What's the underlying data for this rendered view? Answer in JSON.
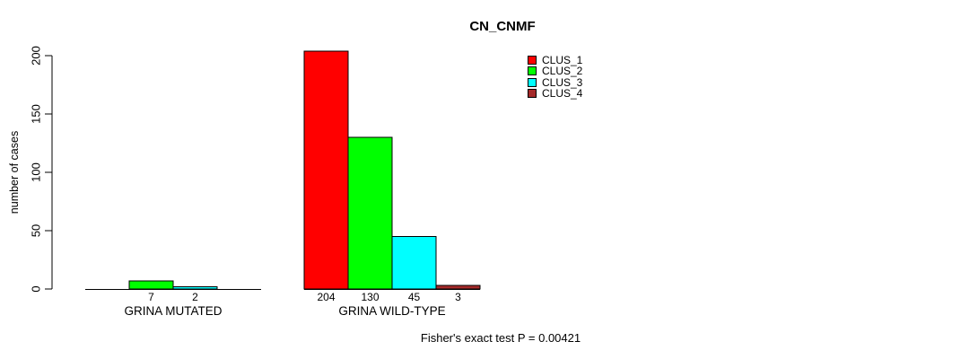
{
  "chart_data": {
    "type": "bar",
    "title": "CN_CNMF",
    "ylabel": "number of cases",
    "xlabel": "",
    "ylim": [
      0,
      200
    ],
    "yticks": [
      0,
      50,
      100,
      150,
      200
    ],
    "categories": [
      "GRINA MUTATED",
      "GRINA WILD-TYPE"
    ],
    "series": [
      {
        "name": "CLUS_1",
        "color": "#FF0000",
        "values": [
          0,
          204
        ]
      },
      {
        "name": "CLUS_2",
        "color": "#00FF00",
        "values": [
          7,
          130
        ]
      },
      {
        "name": "CLUS_3",
        "color": "#00FFFF",
        "values": [
          2,
          45
        ]
      },
      {
        "name": "CLUS_4",
        "color": "#A52A2A",
        "values": [
          0,
          3
        ]
      }
    ],
    "bar_value_labels_shown": [
      "7",
      "2",
      "204",
      "130",
      "45",
      "3"
    ],
    "hide_zero_value_labels": true,
    "legend_position": "top-right",
    "legend_entries": [
      "CLUS_1",
      "CLUS_2",
      "CLUS_3",
      "CLUS_4"
    ],
    "grid": false,
    "annotation": "Fisher's exact test P = 0.00421"
  },
  "colors": {
    "background": "#FFFFFF",
    "axis": "#000000",
    "bar_border": "#000000",
    "text": "#000000"
  }
}
